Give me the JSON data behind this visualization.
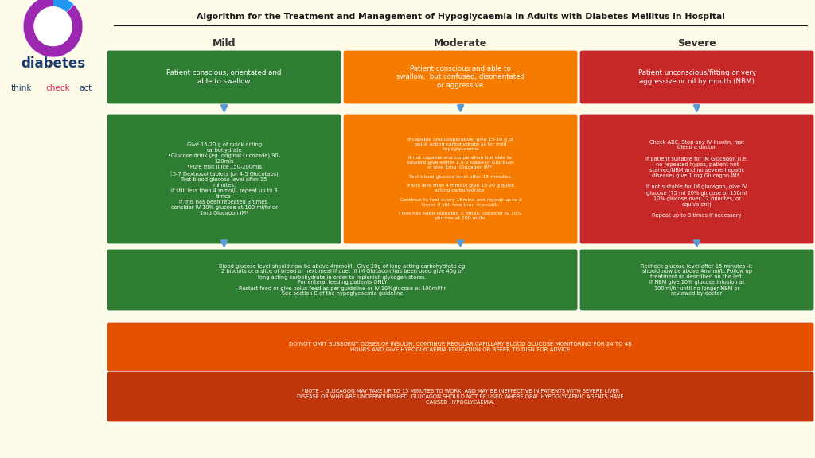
{
  "title": "Algorithm for the Treatment and Management of Hypoglycaemia in Adults with Diabetes Mellitus in Hospital",
  "bg_color": "#FEFCE8",
  "col_headers": [
    "Mild",
    "Moderate",
    "Severe"
  ],
  "row1_texts": [
    "Patient conscious, orientated and\nable to swallow",
    "Patient conscious and able to\nswallow,  but confused, disorientated\nor aggressive",
    "Patient unconscious/fitting or very\naggressive or nil by mouth (NBM)"
  ],
  "row1_colors": [
    "#2E7D32",
    "#F57C00",
    "#C62828"
  ],
  "row2_texts": [
    "Give 15-20 g of quick acting\ncarbohydrate\n•Glucose drink (eg  original Lucozade) 90-\n120mls\n•Pure fruit juice 150-200mls\n┆5-7 Dextrosol tablets (or 4-5 Glucotabs)\nTest blood glucose level after 15\nminutes.\nIf still less than 4 mmol/L repeat up to 3\ntimes\nIf this has been repeated 3 times,\nconsider IV 10% glucose at 100 ml/hr or\n1mg Glucagon IM*",
    "If capable and cooperative, give 15-20 g of\nquick acting carbohydrate as for mild\nhypoglycaemia\n\nIf not capable and cooperative but able to\nswallow give either 1.5-2 tubes of GlucoGel\nor give 1mg  Glucagon IM*.\n\nTest blood glucose level after 15 minutes.\n\nIf still less than 4 mmol/l give 15-20 g quick\nacting carbohydrate.\n\nContinue to test every 15mins and repeat up to 3\ntimes if still less than 4mmol/L.\n\nI this has been repeated 3 times, consider IV 10%\nglucose at 100 ml/hr.",
    "Check ABC, Stop any IV insulin, fast\nbleep a doctor\n\nIf patient suitable for IM Glucagon (i.e.\nno repeated hypos, patient not\nstarved/NBM and no severe hepatic\ndisease) give 1 mg Glucagon IM*.\n\nIf not suitable for IM glucagon, give IV\nglucose (75 ml 20% glucose or 150ml\n10% glucose over 12 minutes, or\nequivalent)\n\nRepeat up to 3 times if necessary"
  ],
  "row2_colors": [
    "#2E7D32",
    "#F57C00",
    "#C62828"
  ],
  "row3_left_text": "Blood glucose level should now be above 4mmol/l.  Give 20g of long acting carbohydrate eg\n2 biscuits or a slice of bread or next meal if due.  If IM Glucacon has been used give 40g of\nlong acting carbohydrate in order to replenish glycogen stores.\nFor enteral feeding patients ONLY\nRestart feed or give bolus feed as per guideline or IV 10%glucose at 100ml/hr\nSee section E of the hypoglycaemia guideline",
  "row3_right_text": "Recheck glucose level after 15 minutes -it\nshould now be above 4mmol/L. Follow up\ntreatment as described on the left.\nIf NBM give 10% glucose infusion at\n100ml/hr until no longer NBM or\nreviewed by doctor",
  "row3_color": "#2E7D32",
  "bottom1_text": "DO NOT OMIT SUBSOENT DOSES OF INSULIN, CONTINUE REGULAR CAPILLARY BLOOD GLUCOSE MONITORING FOR 24 TO 48\nHOURS AND GIVE HYPOGLYCAEMIA EDUCATION OR REFER TO DISN FOR ADVICE",
  "bottom1_color": "#E65100",
  "bottom2_text": "*NOTE – GLUCAGON MAY TAKE UP TO 15 MINUTES TO WORK, AND MAY BE INEFFECTIVE IN PATIENTS WITH SEVERE LIVER\nDISEASE OR WHO ARE UNDERNOURISHED. GLUCAGON SHOULD NOT BE USED WHERE ORAL HYPOGLYCAEMIC AGENTS HAVE\nCAUSED HYPOGLYCAEMIA.",
  "bottom2_color": "#BF360C",
  "arrow_color": "#5B9BD5",
  "header_color": "#333333",
  "logo_ring_colors": [
    "#E91E63",
    "#FF5722",
    "#FF9800",
    "#8BC34A",
    "#4CAF50",
    "#00BCD4",
    "#2196F3",
    "#9C27B0"
  ],
  "logo_diabetes_color": "#1a3a6b",
  "logo_think_color": "#1a3a6b",
  "logo_check_color": "#E91E63",
  "logo_act_color": "#1a3a6b"
}
